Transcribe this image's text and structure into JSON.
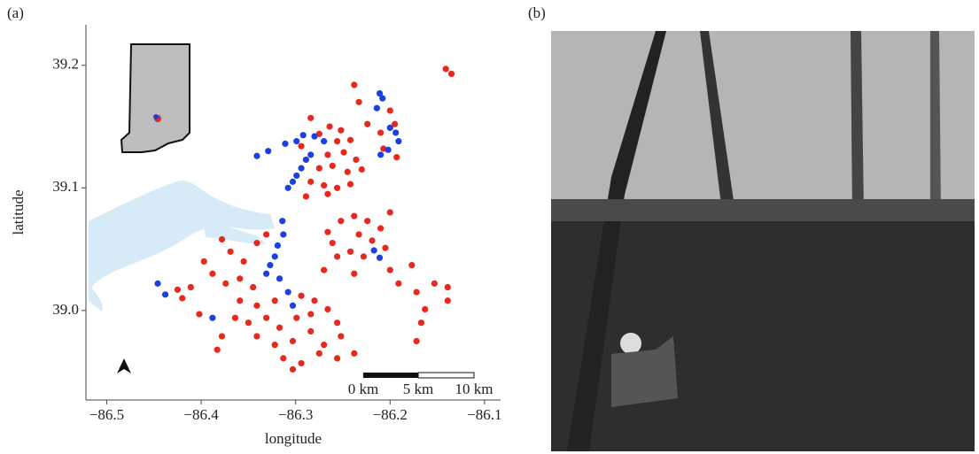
{
  "panel_a_label": "(a)",
  "panel_b_label": "(b)",
  "chart_data": {
    "type": "scatter",
    "xlabel": "longitude",
    "ylabel": "latitude",
    "xlim": [
      -86.522,
      -86.083
    ],
    "ylim": [
      38.927,
      39.233
    ],
    "xticks": [
      {
        "value": -86.5,
        "label": "−86.5"
      },
      {
        "value": -86.4,
        "label": "−86.4"
      },
      {
        "value": -86.3,
        "label": "−86.3"
      },
      {
        "value": -86.2,
        "label": "−86.2"
      },
      {
        "value": -86.1,
        "label": "−86.1"
      }
    ],
    "yticks": [
      {
        "value": 39,
        "label": "39.0"
      },
      39.1,
      39.2
    ],
    "scale_labels": [
      "0 km",
      "5 km",
      "10 km"
    ],
    "series": [
      {
        "color": "#e8281e",
        "x": [
          -86.284,
          -86.264,
          -86.252,
          -86.275,
          -86.256,
          -86.242,
          -86.294,
          -86.266,
          -86.249,
          -86.236,
          -86.275,
          -86.261,
          -86.245,
          -86.23,
          -86.284,
          -86.27,
          -86.256,
          -86.242,
          -86.289,
          -86.266,
          -86.238,
          -86.233,
          -86.224,
          -86.2,
          -86.21,
          -86.195,
          -86.207,
          -86.193,
          -86.141,
          -86.135,
          -86.266,
          -86.252,
          -86.238,
          -86.224,
          -86.21,
          -86.2,
          -86.261,
          -86.233,
          -86.219,
          -86.205,
          -86.256,
          -86.242,
          -86.228,
          -86.2,
          -86.27,
          -86.238,
          -86.378,
          -86.369,
          -86.355,
          -86.341,
          -86.331,
          -86.397,
          -86.388,
          -86.374,
          -86.359,
          -86.345,
          -86.411,
          -86.425,
          -86.359,
          -86.341,
          -86.322,
          -86.294,
          -86.28,
          -86.364,
          -86.35,
          -86.331,
          -86.317,
          -86.299,
          -86.284,
          -86.266,
          -86.256,
          -86.378,
          -86.341,
          -86.322,
          -86.303,
          -86.284,
          -86.27,
          -86.252,
          -86.383,
          -86.313,
          -86.294,
          -86.275,
          -86.256,
          -86.238,
          -86.402,
          -86.303,
          -86.172,
          -86.153,
          -86.139,
          -86.163,
          -86.139,
          -86.167,
          -86.172,
          -86.177,
          -86.191,
          -86.42
        ],
        "y": [
          39.157,
          39.15,
          39.147,
          39.144,
          39.138,
          39.139,
          39.134,
          39.127,
          39.129,
          39.123,
          39.116,
          39.118,
          39.113,
          39.115,
          39.105,
          39.102,
          39.1,
          39.103,
          39.093,
          39.095,
          39.184,
          39.17,
          39.152,
          39.163,
          39.145,
          39.152,
          39.132,
          39.125,
          39.197,
          39.193,
          39.064,
          39.073,
          39.077,
          39.073,
          39.067,
          39.08,
          39.055,
          39.062,
          39.057,
          39.051,
          39.044,
          39.048,
          39.044,
          39.033,
          39.033,
          39.03,
          39.058,
          39.048,
          39.04,
          39.055,
          39.062,
          39.04,
          39.03,
          39.022,
          39.026,
          39.019,
          39.019,
          39.017,
          39.008,
          39.004,
          39.008,
          39.012,
          39.008,
          38.994,
          38.99,
          38.994,
          38.986,
          38.994,
          38.997,
          39.001,
          38.99,
          38.979,
          38.979,
          38.972,
          38.975,
          38.983,
          38.972,
          38.979,
          38.968,
          38.961,
          38.957,
          38.965,
          38.961,
          38.965,
          38.997,
          38.952,
          39.015,
          39.022,
          39.019,
          39.001,
          39.008,
          38.99,
          38.975,
          39.037,
          39.022,
          39.01
        ]
      },
      {
        "color": "#1c3fe0",
        "x": [
          -86.211,
          -86.208,
          -86.214,
          -86.2,
          -86.194,
          -86.191,
          -86.202,
          -86.21,
          -86.341,
          -86.329,
          -86.311,
          -86.299,
          -86.292,
          -86.28,
          -86.27,
          -86.284,
          -86.289,
          -86.294,
          -86.299,
          -86.303,
          -86.308,
          -86.314,
          -86.313,
          -86.319,
          -86.322,
          -86.327,
          -86.317,
          -86.308,
          -86.331,
          -86.211,
          -86.217,
          -86.446,
          -86.438,
          -86.388,
          -86.303
        ],
        "y": [
          39.177,
          39.173,
          39.165,
          39.149,
          39.145,
          39.138,
          39.131,
          39.127,
          39.126,
          39.13,
          39.136,
          39.138,
          39.143,
          39.142,
          39.138,
          39.127,
          39.123,
          39.116,
          39.11,
          39.105,
          39.1,
          39.073,
          39.062,
          39.053,
          39.044,
          39.037,
          39.026,
          39.015,
          39.03,
          39.043,
          39.049,
          39.022,
          39.013,
          38.994,
          39.004
        ]
      }
    ]
  }
}
